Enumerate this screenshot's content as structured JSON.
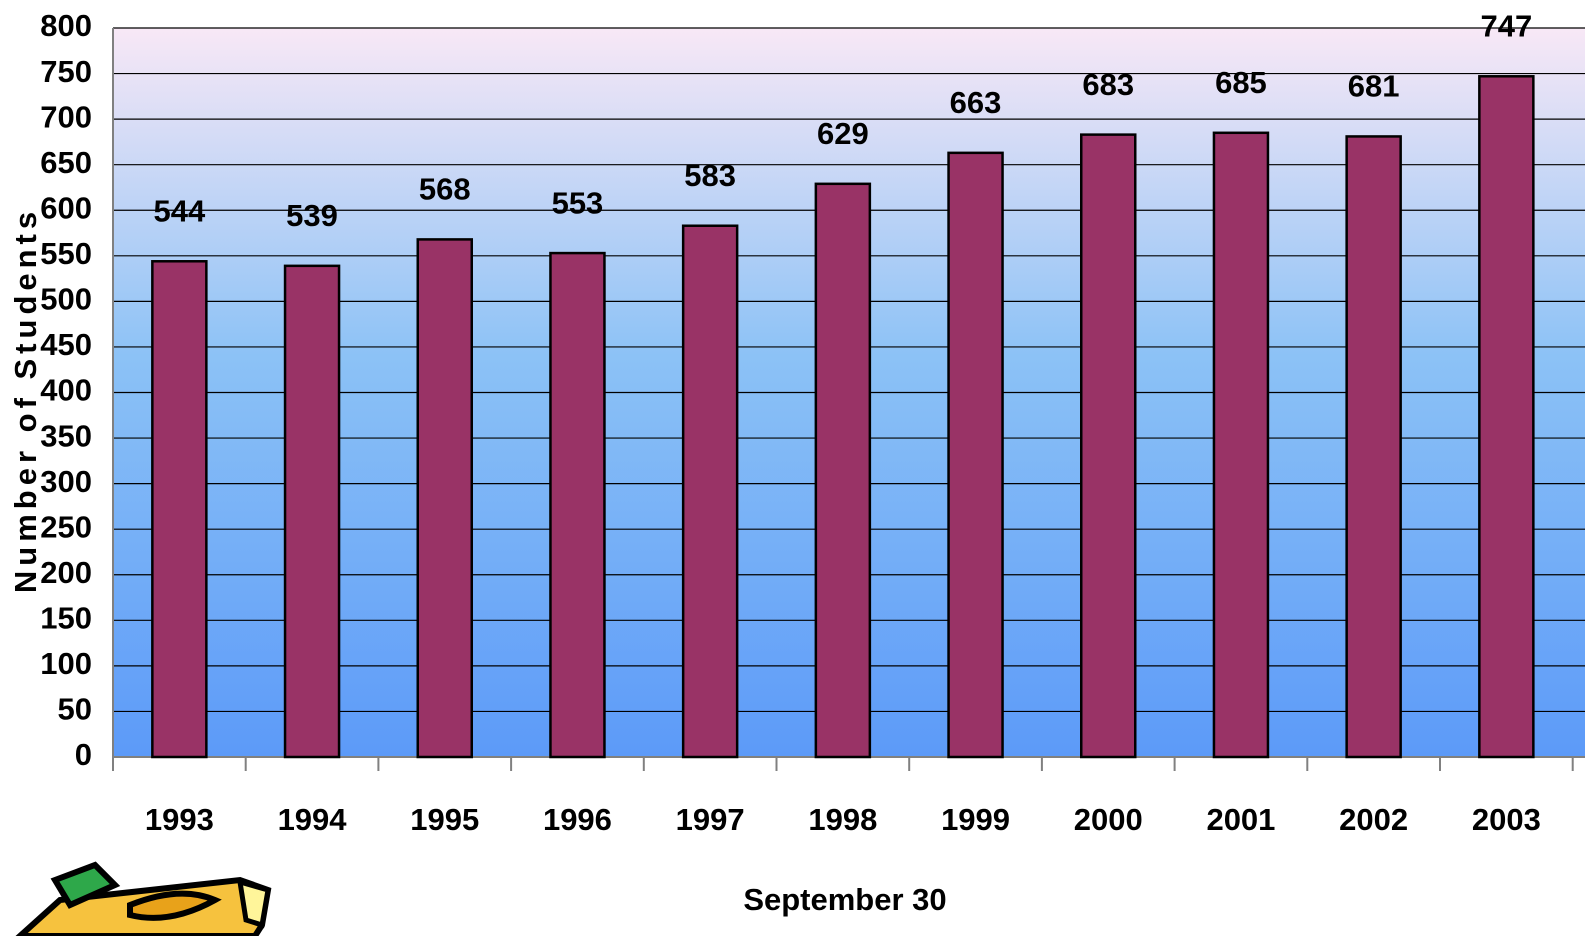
{
  "chart_data": {
    "type": "bar",
    "x_label": "September 30",
    "y_label": "Number of Students",
    "categories": [
      "1993",
      "1994",
      "1995",
      "1996",
      "1997",
      "1998",
      "1999",
      "2000",
      "2001",
      "2002",
      "2003"
    ],
    "values": [
      544,
      539,
      568,
      553,
      583,
      629,
      663,
      683,
      685,
      681,
      747
    ],
    "color": "#993366",
    "ylim": [
      0,
      800
    ],
    "yticks": [
      0,
      50,
      100,
      150,
      200,
      250,
      300,
      350,
      400,
      450,
      500,
      550,
      600,
      650,
      700,
      750,
      800
    ],
    "grid": true
  }
}
